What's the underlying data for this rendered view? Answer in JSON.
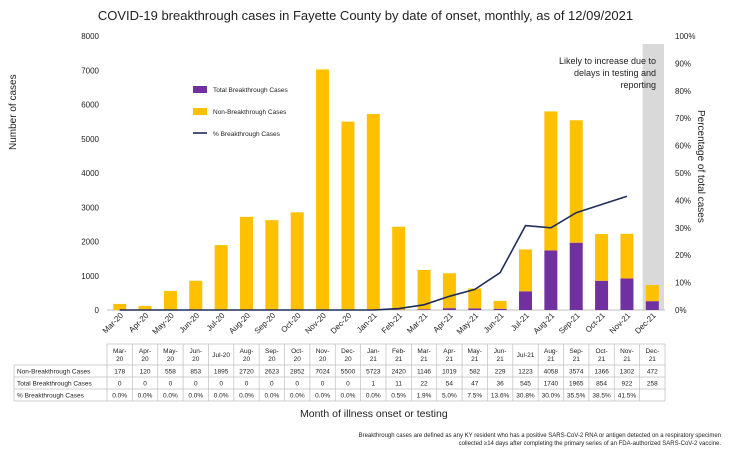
{
  "chart_data": {
    "type": "bar",
    "title": "COVID-19 breakthrough cases in Fayette County by date of onset, monthly, as of 12/09/2021",
    "xlabel": "Month of illness onset or testing",
    "ylabel": "Number of cases",
    "y2label": "Percentage of total cases",
    "ylim": [
      0,
      8000
    ],
    "y2lim": [
      0,
      100
    ],
    "yticks": [
      "0",
      "1000",
      "2000",
      "3000",
      "4000",
      "5000",
      "6000",
      "7000",
      "8000"
    ],
    "y2ticks": [
      "0%",
      "10%",
      "20%",
      "30%",
      "40%",
      "50%",
      "60%",
      "70%",
      "80%",
      "90%",
      "100%"
    ],
    "stacked": true,
    "legend_position": "upper-left",
    "categories": [
      "Mar-20",
      "Apr-20",
      "May-20",
      "Jun-20",
      "Jul-20",
      "Aug-20",
      "Sep-20",
      "Oct-20",
      "Nov-20",
      "Dec-20",
      "Jan-21",
      "Feb-21",
      "Mar-21",
      "Apr-21",
      "May-21",
      "Jun-21",
      "Jul-21",
      "Aug-21",
      "Sep-21",
      "Oct-21",
      "Nov-21",
      "Dec-21"
    ],
    "table_headers": [
      "Mar-\n20",
      "Apr-\n20",
      "May-\n20",
      "Jun-\n20",
      "Jul-20",
      "Aug-\n20",
      "Sep-\n20",
      "Oct-\n20",
      "Nov-\n20",
      "Dec-\n20",
      "Jan-\n21",
      "Feb-\n21",
      "Mar-\n21",
      "Apr-\n21",
      "May-\n21",
      "Jun-\n21",
      "Jul-21",
      "Aug-\n21",
      "Sep-\n21",
      "Oct-\n21",
      "Nov-\n21",
      "Dec-\n21"
    ],
    "series": [
      {
        "name": "Total Breakthrough Cases",
        "color": "#7030a0",
        "values": [
          0,
          0,
          0,
          0,
          0,
          0,
          0,
          0,
          0,
          0,
          1,
          11,
          22,
          54,
          47,
          36,
          545,
          1740,
          1965,
          854,
          922,
          258
        ]
      },
      {
        "name": "Non-Breakthrough Cases",
        "color": "#ffc000",
        "values": [
          178,
          120,
          558,
          853,
          1895,
          2720,
          2623,
          2852,
          7024,
          5500,
          5723,
          2420,
          1146,
          1019,
          582,
          229,
          1223,
          4058,
          3574,
          1366,
          1302,
          472
        ]
      },
      {
        "name": "% Breakthrough Cases",
        "color": "#1f2d5a",
        "type": "line",
        "axis": "right",
        "values": [
          0,
          0,
          0,
          0,
          0,
          0,
          0,
          0,
          0,
          0,
          0,
          0.5,
          1.9,
          5.0,
          7.5,
          13.6,
          30.8,
          30.0,
          35.5,
          38.5,
          41.5,
          null
        ]
      }
    ],
    "table_rows": [
      {
        "label": "Non-Breakthrough Cases",
        "cells": [
          "178",
          "120",
          "558",
          "853",
          "1895",
          "2720",
          "2623",
          "2852",
          "7024",
          "5500",
          "5723",
          "2420",
          "1146",
          "1019",
          "582",
          "229",
          "1223",
          "4058",
          "3574",
          "1366",
          "1302",
          "472"
        ]
      },
      {
        "label": "Total Breakthrough Cases",
        "cells": [
          "0",
          "0",
          "0",
          "0",
          "0",
          "0",
          "0",
          "0",
          "0",
          "0",
          "1",
          "11",
          "22",
          "54",
          "47",
          "36",
          "545",
          "1740",
          "1965",
          "854",
          "922",
          "258"
        ]
      },
      {
        "label": "% Breakthrough Cases",
        "cells": [
          "0.0%",
          "0.0%",
          "0.0%",
          "0.0%",
          "0.0%",
          "0.0%",
          "0.0%",
          "0.0%",
          "0.0%",
          "0.0%",
          "0.0%",
          "0.5%",
          "1.9%",
          "5.0%",
          "7.5%",
          "13.6%",
          "30.8%",
          "30.0%",
          "35.5%",
          "38.5%",
          "41.5%",
          ""
        ]
      }
    ],
    "annotation": [
      "Likely to increase due to",
      "delays in testing and",
      "reporting"
    ],
    "shaded_category": "Dec-21",
    "footnote": [
      "Breakthrough cases are defined as any KY resident who has a positive SARS-CoV-2 RNA or antigen detected on a respiratory specimen",
      "collected ≥14 days after completing the primary series of an FDA-authorized SARS-CoV-2 vaccine."
    ]
  }
}
